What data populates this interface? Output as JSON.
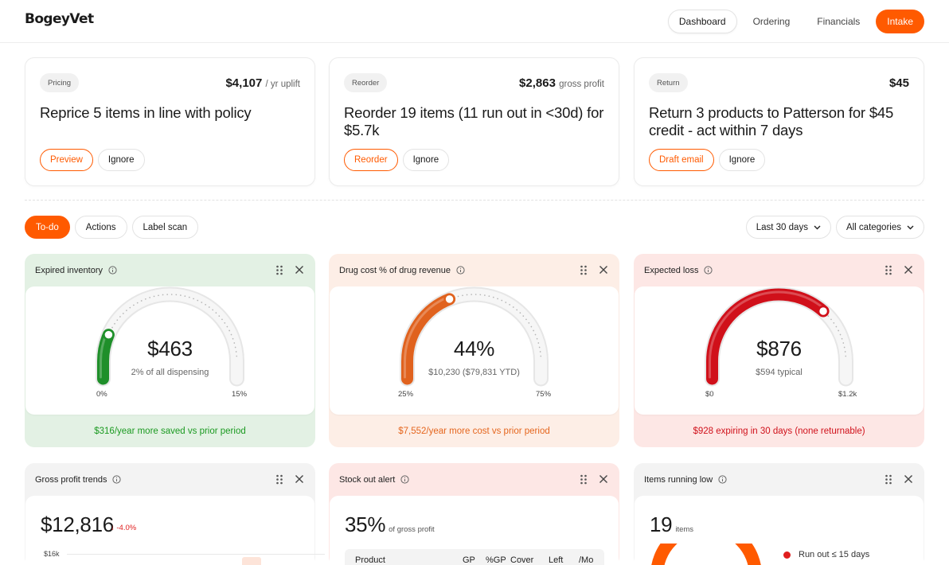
{
  "app": {
    "logo": "BogeyVet"
  },
  "nav": {
    "dashboard": "Dashboard",
    "ordering": "Ordering",
    "financials": "Financials",
    "intake": "Intake"
  },
  "action_cards": [
    {
      "tag": "Pricing",
      "amount": "$4,107",
      "amount_suffix": "/ yr uplift",
      "title": "Reprice 5 items in line with policy",
      "primary_btn": "Preview",
      "secondary_btn": "Ignore"
    },
    {
      "tag": "Reorder",
      "amount": "$2,863",
      "amount_suffix": "gross profit",
      "title": "Reorder 19 items (11 run out in <30d) for $5.7k",
      "primary_btn": "Reorder",
      "secondary_btn": "Ignore"
    },
    {
      "tag": "Return",
      "amount": "$45",
      "amount_suffix": "",
      "title": "Return 3 products to Patterson for $45 credit - act within 7 days",
      "primary_btn": "Draft email",
      "secondary_btn": "Ignore"
    }
  ],
  "tabs": [
    "To-do",
    "Actions",
    "Label scan"
  ],
  "filters": {
    "period": "Last 30 days",
    "category": "All categories"
  },
  "widgets": [
    {
      "title": "Expired inventory",
      "value": "$463",
      "sub": "2% of all dispensing",
      "min_label": "0%",
      "max_label": "15%",
      "level": 0.13,
      "color": "#1f8f2a",
      "footer": "$316/year more saved vs prior period",
      "footer_color": "#1b9a21"
    },
    {
      "title": "Drug cost % of drug revenue",
      "value": "44%",
      "sub": "$10,230 ($79,831 YTD)",
      "min_label": "25%",
      "max_label": "75%",
      "level": 0.38,
      "color": "#e0621e",
      "footer": "$7,552/year more cost vs prior period",
      "footer_color": "#e5661e"
    },
    {
      "title": "Expected loss",
      "value": "$876",
      "sub": "$594 typical",
      "min_label": "$0",
      "max_label": "$1.2k",
      "level": 0.73,
      "color": "#d0101a",
      "footer": "$928 expiring in 30 days (none returnable)",
      "footer_color": "#d0101a"
    }
  ],
  "lower": {
    "gross_profit": {
      "title": "Gross profit trends",
      "value": "$12,816",
      "delta": "↓ -4.0%",
      "axis_tick": "$16k"
    },
    "stock_out": {
      "title": "Stock out alert",
      "value": "35%",
      "unit": "of gross profit",
      "columns": [
        "Product",
        "GP",
        "%GP",
        "Cover",
        "Left",
        "/Mo"
      ]
    },
    "running_low": {
      "title": "Items running low",
      "value": "19",
      "unit": "items",
      "legend_1": "Run out ≤ 15 days"
    }
  }
}
